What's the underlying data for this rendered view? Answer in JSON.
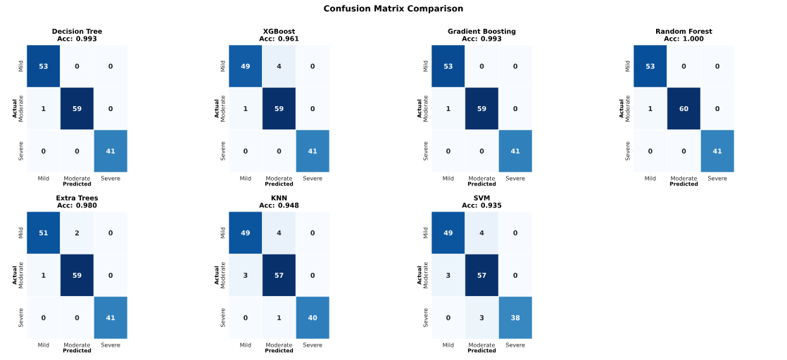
{
  "chart_data": [
    {
      "type": "heatmap",
      "title": "Decision Tree",
      "subtitle": "Acc: 0.993",
      "xlabel": "Predicted",
      "ylabel": "Actual",
      "annotations": [
        "Confusion Matrix Comparison"
      ],
      "categories": [
        "Mild",
        "Moderate",
        "Severe"
      ],
      "y_categories": [
        "Mild",
        "Moderate",
        "Severe"
      ],
      "cells": [
        [
          53,
          0,
          0
        ],
        [
          1,
          59,
          0
        ],
        [
          0,
          0,
          41
        ]
      ],
      "data_labels": true
    },
    {
      "type": "heatmap",
      "title": "XGBoost",
      "subtitle": "Acc: 0.961",
      "xlabel": "Predicted",
      "ylabel": "Actual",
      "categories": [
        "Mild",
        "Moderate",
        "Severe"
      ],
      "y_categories": [
        "Mild",
        "Moderate",
        "Severe"
      ],
      "cells": [
        [
          49,
          4,
          0
        ],
        [
          1,
          59,
          0
        ],
        [
          0,
          0,
          41
        ]
      ],
      "data_labels": true
    },
    {
      "type": "heatmap",
      "title": "Gradient Boosting",
      "subtitle": "Acc: 0.993",
      "xlabel": "Predicted",
      "ylabel": "Actual",
      "categories": [
        "Mild",
        "Moderate",
        "Severe"
      ],
      "y_categories": [
        "Mild",
        "Moderate",
        "Severe"
      ],
      "cells": [
        [
          53,
          0,
          0
        ],
        [
          1,
          59,
          0
        ],
        [
          0,
          0,
          41
        ]
      ],
      "data_labels": true
    },
    {
      "type": "heatmap",
      "title": "Random Forest",
      "subtitle": "Acc: 1.000",
      "xlabel": "Predicted",
      "ylabel": "Actual",
      "categories": [
        "Mild",
        "Moderate",
        "Severe"
      ],
      "y_categories": [
        "Mild",
        "Moderate",
        "Severe"
      ],
      "cells": [
        [
          53,
          0,
          0
        ],
        [
          1,
          60,
          0
        ],
        [
          0,
          0,
          41
        ]
      ],
      "data_labels": true
    },
    {
      "type": "heatmap",
      "title": "Extra Trees",
      "subtitle": "Acc: 0.980",
      "xlabel": "Predicted",
      "ylabel": "Actual",
      "categories": [
        "Mild",
        "Moderate",
        "Severe"
      ],
      "y_categories": [
        "Mild",
        "Moderate",
        "Severe"
      ],
      "cells": [
        [
          51,
          2,
          0
        ],
        [
          1,
          59,
          0
        ],
        [
          0,
          0,
          41
        ]
      ],
      "data_labels": true
    },
    {
      "type": "heatmap",
      "title": "KNN",
      "subtitle": "Acc: 0.948",
      "xlabel": "Predicted",
      "ylabel": "Actual",
      "categories": [
        "Mild",
        "Moderate",
        "Severe"
      ],
      "y_categories": [
        "Mild",
        "Moderate",
        "Severe"
      ],
      "cells": [
        [
          49,
          4,
          0
        ],
        [
          3,
          57,
          0
        ],
        [
          0,
          1,
          40
        ]
      ],
      "data_labels": true
    },
    {
      "type": "heatmap",
      "title": "SVM",
      "subtitle": "Acc: 0.935",
      "xlabel": "Predicted",
      "ylabel": "Actual",
      "categories": [
        "Mild",
        "Moderate",
        "Severe"
      ],
      "y_categories": [
        "Mild",
        "Moderate",
        "Severe"
      ],
      "cells": [
        [
          49,
          4,
          0
        ],
        [
          3,
          57,
          0
        ],
        [
          0,
          3,
          38
        ]
      ],
      "data_labels": true
    }
  ]
}
